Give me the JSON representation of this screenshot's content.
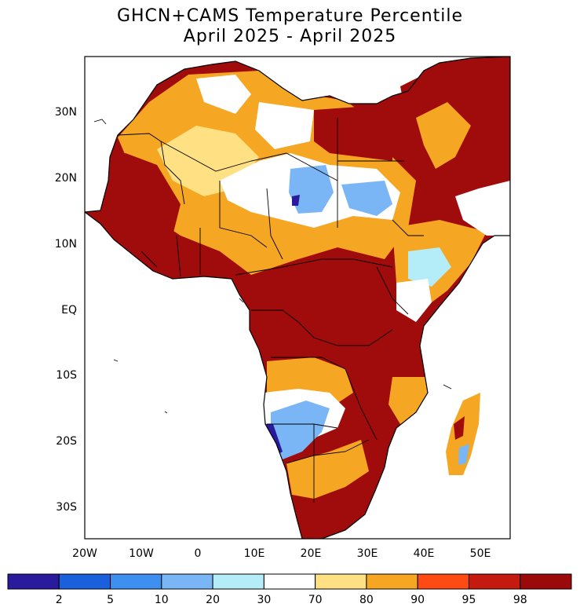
{
  "title": "GHCN+CAMS Temperature Percentile",
  "subtitle": "April 2025 - April 2025",
  "lat_labels": [
    "30N",
    "20N",
    "10N",
    "EQ",
    "10S",
    "20S",
    "30S"
  ],
  "lon_labels": [
    "20W",
    "10W",
    "0",
    "10E",
    "20E",
    "30E",
    "40E",
    "50E"
  ],
  "legend": {
    "tick_labels": [
      "2",
      "5",
      "10",
      "20",
      "30",
      "70",
      "80",
      "90",
      "95",
      "98"
    ],
    "colors": [
      "#2a1a9e",
      "#1a5fdc",
      "#3d8ff0",
      "#7ab6f5",
      "#b4ecf8",
      "#ffffff",
      "#ffe082",
      "#f5a623",
      "#ff4a14",
      "#c41a10",
      "#9a0a0a"
    ]
  },
  "map_colors": {
    "ocean": "#ffffff",
    "dark_red": "#a00c0c",
    "orange": "#f5a623",
    "light_yellow": "#ffe082",
    "light_blue": "#7ab6f5",
    "pale_cyan": "#b4ecf8",
    "dark_blue": "#2a1a9e"
  }
}
